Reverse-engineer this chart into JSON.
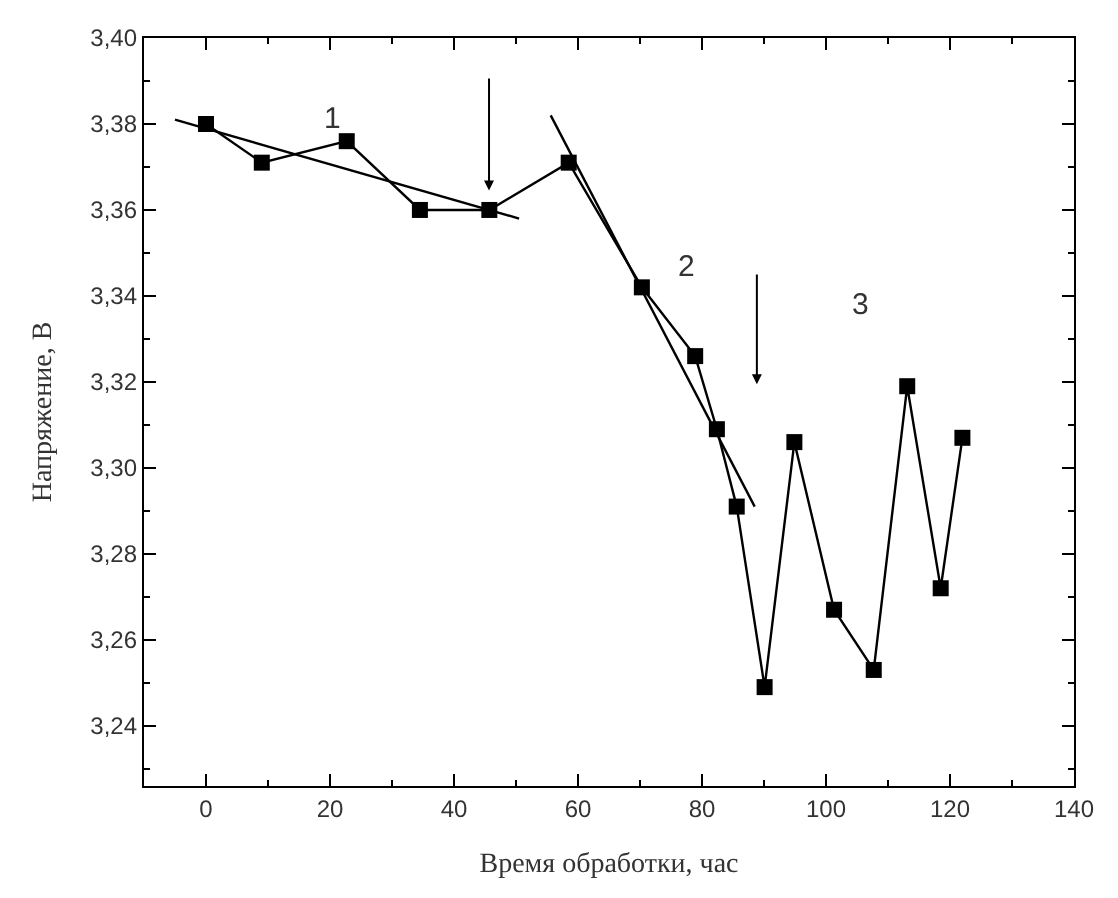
{
  "chart_data": {
    "type": "line",
    "xlabel": "Время обработки, час",
    "ylabel": "Напряжение, В",
    "xlim": [
      -10,
      140
    ],
    "xticks": [
      0,
      20,
      40,
      60,
      80,
      100,
      120,
      140
    ],
    "ylim": [
      3.226,
      3.4
    ],
    "yticks": [
      {
        "value": 3.24,
        "label": "3,24"
      },
      {
        "value": 3.26,
        "label": "3,26"
      },
      {
        "value": 3.28,
        "label": "3,28"
      },
      {
        "value": 3.3,
        "label": "3,30"
      },
      {
        "value": 3.32,
        "label": "3,32"
      },
      {
        "value": 3.34,
        "label": "3,34"
      },
      {
        "value": 3.36,
        "label": "3,36"
      },
      {
        "value": 3.38,
        "label": "3,38"
      },
      {
        "value": 3.4,
        "label": "3,40"
      }
    ],
    "series": [
      {
        "color": "#000000",
        "marker": "square",
        "x": [
          0,
          9,
          22.7,
          34.5,
          45.7,
          58.5,
          70.3,
          78.9,
          82.4,
          85.6,
          90.1,
          94.9,
          101.3,
          107.7,
          113.1,
          118.5,
          122
        ],
        "values": [
          3.38,
          3.371,
          3.376,
          3.36,
          3.36,
          3.371,
          3.342,
          3.326,
          3.309,
          3.291,
          3.249,
          3.306,
          3.267,
          3.253,
          3.319,
          3.272,
          3.307
        ]
      },
      {
        "type": "line",
        "color": "#000000",
        "marker": "none",
        "x": [
          -5,
          50.5
        ],
        "values": [
          3.381,
          3.358
        ]
      },
      {
        "type": "line",
        "color": "#000000",
        "marker": "none",
        "x": [
          55.6,
          88.5
        ],
        "values": [
          3.382,
          3.291
        ]
      }
    ],
    "annotations": [
      "1",
      "2",
      "3"
    ]
  }
}
